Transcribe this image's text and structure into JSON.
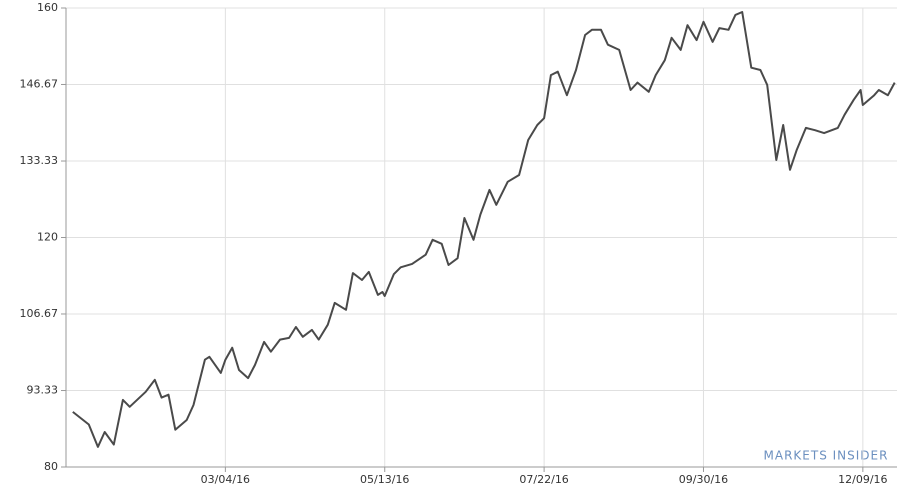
{
  "chart_data": {
    "type": "line",
    "watermark": "MARKETS INSIDER",
    "x": [
      "12/28/15",
      "01/04/16",
      "01/08/16",
      "01/11/16",
      "01/15/16",
      "01/19/16",
      "01/22/16",
      "01/29/16",
      "02/02/16",
      "02/05/16",
      "02/08/16",
      "02/11/16",
      "02/16/16",
      "02/19/16",
      "02/24/16",
      "02/26/16",
      "03/02/16",
      "03/04/16",
      "03/07/16",
      "03/10/16",
      "03/14/16",
      "03/17/16",
      "03/21/16",
      "03/24/16",
      "03/28/16",
      "04/01/16",
      "04/04/16",
      "04/07/16",
      "04/11/16",
      "04/14/16",
      "04/18/16",
      "04/21/16",
      "04/26/16",
      "04/29/16",
      "05/03/16",
      "05/06/16",
      "05/10/16",
      "05/12/16",
      "05/13/16",
      "05/17/16",
      "05/20/16",
      "05/25/16",
      "05/31/16",
      "06/03/16",
      "06/07/16",
      "06/10/16",
      "06/14/16",
      "06/17/16",
      "06/21/16",
      "06/24/16",
      "06/28/16",
      "07/01/16",
      "07/06/16",
      "07/11/16",
      "07/15/16",
      "07/19/16",
      "07/22/16",
      "07/25/16",
      "07/28/16",
      "08/01/16",
      "08/05/16",
      "08/09/16",
      "08/12/16",
      "08/16/16",
      "08/19/16",
      "08/24/16",
      "08/29/16",
      "09/01/16",
      "09/06/16",
      "09/09/16",
      "09/13/16",
      "09/16/16",
      "09/20/16",
      "09/23/16",
      "09/27/16",
      "09/30/16",
      "10/04/16",
      "10/07/16",
      "10/11/16",
      "10/14/16",
      "10/17/16",
      "10/21/16",
      "10/25/16",
      "10/28/16",
      "11/01/16",
      "11/04/16",
      "11/07/16",
      "11/10/16",
      "11/14/16",
      "11/18/16",
      "11/22/16",
      "11/28/16",
      "12/01/16",
      "12/05/16",
      "12/08/16",
      "12/09/16",
      "12/14/16",
      "12/16/16",
      "12/20/16",
      "12/23/16"
    ],
    "series": [
      {
        "color": "#4a4a4a",
        "values": [
          89.6,
          87.4,
          83.5,
          86.1,
          83.9,
          91.7,
          90.5,
          93.1,
          95.2,
          92.1,
          92.6,
          86.5,
          88.2,
          90.8,
          98.7,
          99.2,
          96.4,
          98.7,
          100.8,
          96.9,
          95.5,
          97.8,
          101.8,
          100.1,
          102.2,
          102.5,
          104.4,
          102.7,
          103.9,
          102.2,
          104.8,
          108.6,
          107.4,
          113.8,
          112.6,
          114.0,
          110.0,
          110.5,
          109.8,
          113.6,
          114.8,
          115.4,
          117.0,
          119.6,
          118.9,
          115.2,
          116.4,
          123.4,
          119.6,
          124.0,
          128.3,
          125.7,
          129.7,
          130.9,
          137.0,
          139.6,
          140.8,
          148.3,
          148.9,
          144.8,
          149.2,
          155.3,
          156.2,
          156.2,
          153.6,
          152.7,
          145.7,
          147.0,
          145.4,
          148.3,
          150.9,
          154.8,
          152.7,
          157.0,
          154.4,
          157.6,
          154.1,
          156.5,
          156.2,
          158.8,
          159.3,
          149.6,
          149.2,
          146.6,
          133.5,
          139.6,
          131.8,
          135.3,
          139.1,
          138.7,
          138.2,
          139.1,
          141.4,
          144.0,
          145.7,
          143.1,
          144.8,
          145.7,
          144.8,
          147.0
        ]
      }
    ],
    "xlim": [
      "12/25/15",
      "12/24/16"
    ],
    "xticks": [
      "03/04/16",
      "05/13/16",
      "07/22/16",
      "09/30/16",
      "12/09/16"
    ],
    "ylim": [
      80,
      160
    ],
    "yticks": [
      80,
      93.33,
      106.67,
      120,
      133.33,
      146.67,
      160
    ],
    "grid": true
  }
}
